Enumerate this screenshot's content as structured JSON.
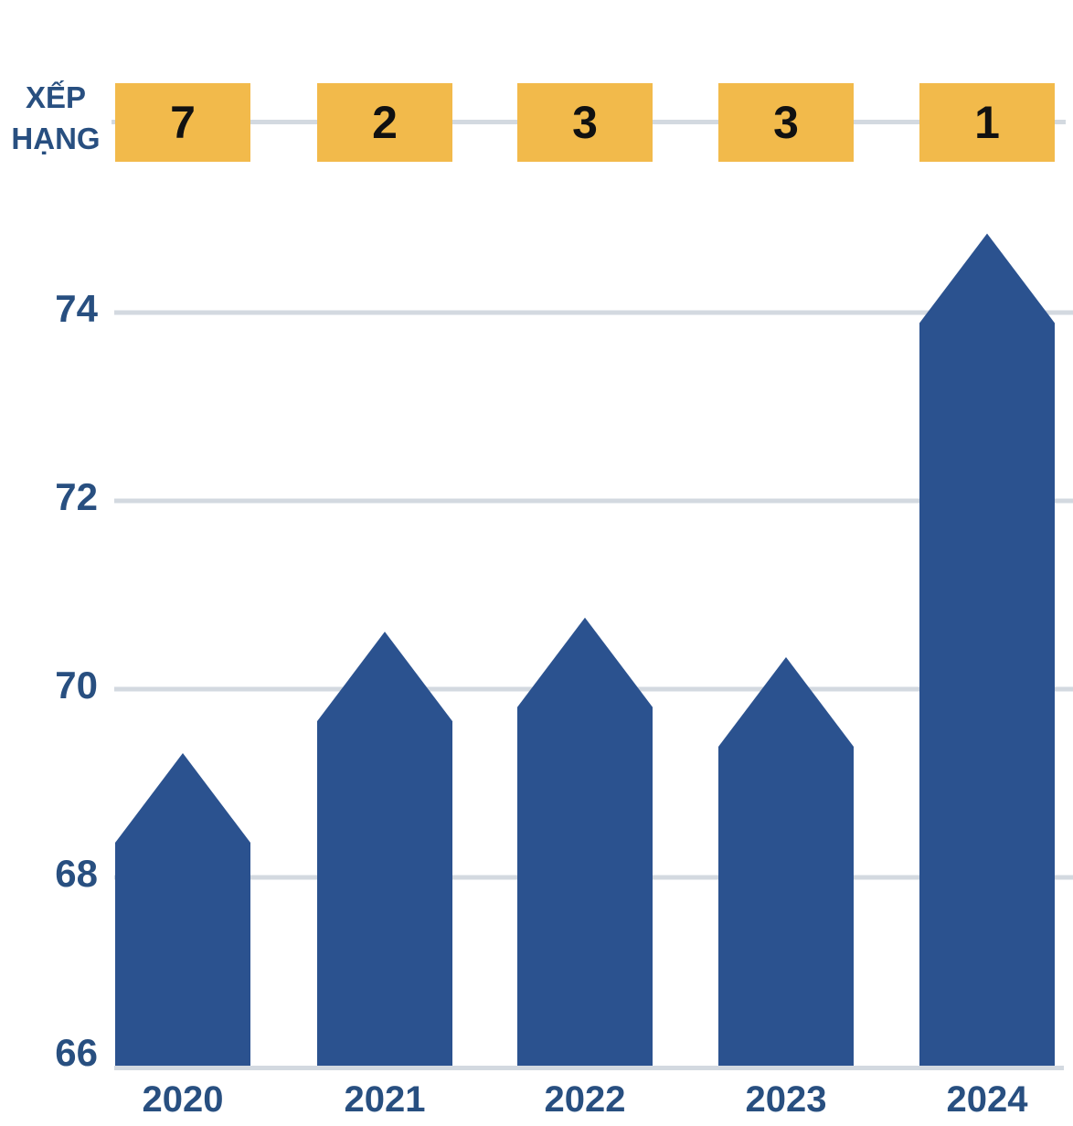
{
  "ranking": {
    "label_line1": "XẾP",
    "label_line2": "HẠNG",
    "values": [
      "7",
      "2",
      "3",
      "3",
      "1"
    ]
  },
  "chart_data": {
    "type": "bar",
    "title": "",
    "xlabel": "",
    "ylabel": "",
    "categories": [
      "2020",
      "2021",
      "2022",
      "2023",
      "2024"
    ],
    "values": [
      69.32,
      70.61,
      70.76,
      70.34,
      74.84
    ],
    "ranks": [
      7,
      2,
      3,
      3,
      1
    ],
    "ylim": [
      66,
      75.2
    ],
    "yticks": [
      66,
      68,
      70,
      72,
      74
    ],
    "grid": true,
    "legend": "none",
    "bar_shape": "pentagon-pointed-top"
  },
  "colors": {
    "bar": "#2B528F",
    "navy": "#284F80",
    "orange": "#F2BA4B",
    "grid": "#D3D9E0",
    "rank_text": "#111111"
  }
}
